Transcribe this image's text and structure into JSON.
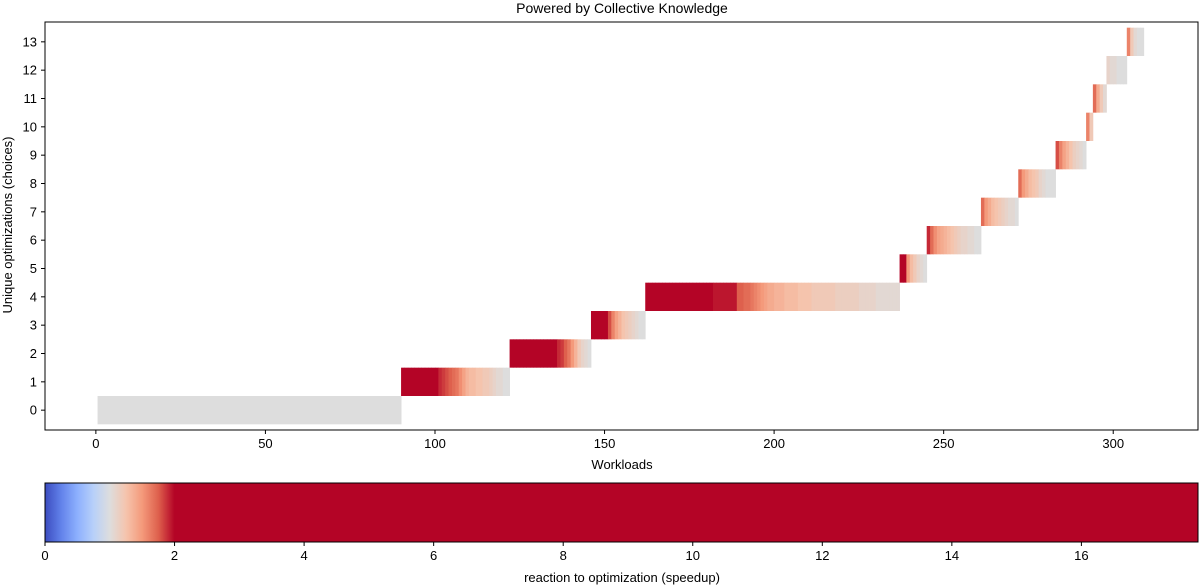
{
  "chart_data": [
    {
      "type": "heatmap",
      "title": "Powered by Collective Knowledge",
      "xlabel": "Workloads",
      "ylabel": "Unique optimizations (choices)",
      "xlim": [
        -15,
        325
      ],
      "ylim": [
        -0.7,
        13.7
      ],
      "xticks": [
        0,
        50,
        100,
        150,
        200,
        250,
        300
      ],
      "yticks": [
        0,
        1,
        2,
        3,
        4,
        5,
        6,
        7,
        8,
        9,
        10,
        11,
        12,
        13
      ],
      "grid": false,
      "value_label": "reaction to optimization (speedup)",
      "rows": [
        {
          "choices": 0,
          "start": 0.5,
          "end": 90,
          "speedup": [
            1.0
          ]
        },
        {
          "choices": 1,
          "start": 90,
          "end": 122,
          "speedup": [
            2.2,
            2.2,
            2.2,
            2.2,
            2.2,
            2.2,
            2.2,
            2.2,
            2.2,
            2.2,
            2.0,
            1.9,
            1.85,
            1.8,
            1.75,
            1.7,
            1.65,
            1.55,
            1.45,
            1.35,
            1.3,
            1.3,
            1.25,
            1.25,
            1.2,
            1.2,
            1.15,
            1.1,
            1.05,
            1.05,
            1.0,
            1.0
          ]
        },
        {
          "choices": 2,
          "start": 122,
          "end": 146,
          "speedup": [
            2.2,
            2.2,
            2.2,
            2.2,
            2.2,
            2.2,
            2.2,
            2.2,
            2.2,
            2.2,
            2.2,
            2.2,
            2.2,
            2.0,
            1.9,
            1.85,
            1.75,
            1.65,
            1.5,
            1.35,
            1.2,
            1.1,
            1.05,
            1.0
          ]
        },
        {
          "choices": 3,
          "start": 146,
          "end": 162,
          "speedup": [
            2.2,
            2.2,
            2.2,
            2.2,
            2.2,
            1.8,
            1.6,
            1.45,
            1.35,
            1.25,
            1.2,
            1.15,
            1.1,
            1.05,
            1.0,
            1.0
          ]
        },
        {
          "choices": 4,
          "start": 162,
          "end": 237,
          "speedup": [
            2.2,
            2.2,
            2.2,
            2.2,
            2.2,
            2.2,
            2.2,
            2.2,
            2.2,
            2.2,
            2.2,
            2.2,
            2.2,
            2.2,
            2.2,
            2.2,
            2.2,
            2.2,
            2.2,
            2.2,
            1.95,
            1.95,
            1.95,
            1.95,
            1.95,
            1.95,
            1.95,
            1.75,
            1.75,
            1.7,
            1.7,
            1.65,
            1.6,
            1.55,
            1.5,
            1.45,
            1.4,
            1.4,
            1.35,
            1.35,
            1.35,
            1.3,
            1.3,
            1.3,
            1.3,
            1.25,
            1.25,
            1.25,
            1.25,
            1.2,
            1.2,
            1.2,
            1.2,
            1.2,
            1.2,
            1.2,
            1.15,
            1.15,
            1.15,
            1.15,
            1.15,
            1.15,
            1.15,
            1.1,
            1.1,
            1.1,
            1.1,
            1.1,
            1.05,
            1.05,
            1.05,
            1.05,
            1.05,
            1.05,
            1.05
          ]
        },
        {
          "choices": 5,
          "start": 237,
          "end": 245,
          "speedup": [
            2.2,
            2.2,
            1.5,
            1.3,
            1.2,
            1.1,
            1.05,
            1.0
          ]
        },
        {
          "choices": 6,
          "start": 245,
          "end": 261,
          "speedup": [
            1.9,
            1.7,
            1.55,
            1.45,
            1.4,
            1.35,
            1.3,
            1.25,
            1.2,
            1.15,
            1.1,
            1.1,
            1.05,
            1.05,
            1.0,
            1.0
          ]
        },
        {
          "choices": 7,
          "start": 261,
          "end": 272,
          "speedup": [
            1.7,
            1.5,
            1.4,
            1.3,
            1.25,
            1.2,
            1.15,
            1.1,
            1.05,
            1.05,
            1.0
          ]
        },
        {
          "choices": 8,
          "start": 272,
          "end": 283,
          "speedup": [
            1.7,
            1.5,
            1.4,
            1.3,
            1.25,
            1.2,
            1.1,
            1.05,
            1.0,
            1.0,
            1.0
          ]
        },
        {
          "choices": 9,
          "start": 283,
          "end": 292,
          "speedup": [
            1.8,
            1.6,
            1.45,
            1.35,
            1.25,
            1.15,
            1.1,
            1.05,
            1.0
          ]
        },
        {
          "choices": 10,
          "start": 292,
          "end": 294,
          "speedup": [
            1.6,
            1.2
          ]
        },
        {
          "choices": 11,
          "start": 294,
          "end": 298,
          "speedup": [
            1.7,
            1.4,
            1.2,
            1.05
          ]
        },
        {
          "choices": 12,
          "start": 298,
          "end": 304,
          "speedup": [
            1.1,
            1.05,
            1.05,
            1.0,
            1.0,
            1.0
          ]
        },
        {
          "choices": 13,
          "start": 304,
          "end": 309,
          "speedup": [
            1.6,
            1.2,
            1.05,
            1.0,
            1.0
          ]
        }
      ]
    },
    {
      "type": "heatmap",
      "xlabel": "reaction to optimization (speedup)",
      "xlim": [
        0,
        17.8
      ],
      "xticks": [
        0,
        2,
        4,
        6,
        8,
        10,
        12,
        14,
        16
      ],
      "colormap": "coolwarm",
      "color_range": [
        0,
        2
      ]
    }
  ]
}
